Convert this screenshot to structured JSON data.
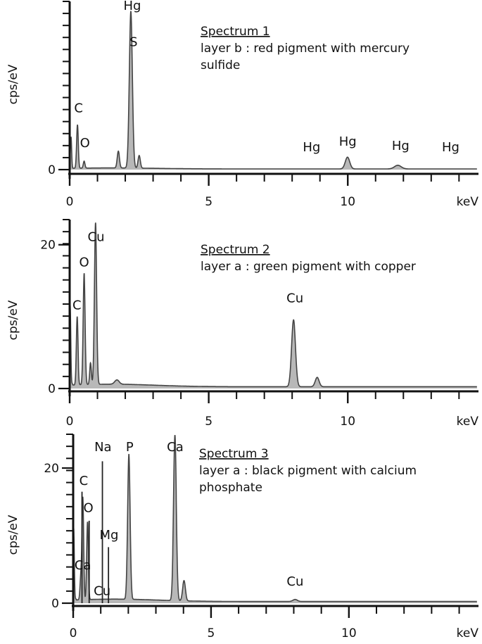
{
  "chart_data": [
    {
      "type": "line",
      "title": "Spectrum 1",
      "subtitle": "layer b : red pigment with mercury sulfide",
      "subtitle_lines": [
        "layer b : red pigment with mercury",
        "sulfide"
      ],
      "xlabel": "keV",
      "ylabel": "cps/eV",
      "xlim": [
        0,
        14.7
      ],
      "ylim": [
        0,
        60
      ],
      "x_ticks": [
        0,
        5,
        10
      ],
      "y_ticks": [
        0
      ],
      "fill_color": "#b8b8b8",
      "line_color": "#444444",
      "peaks": [
        {
          "x": 0.05,
          "height": 10.5,
          "width": 0.02
        },
        {
          "x": 0.28,
          "height": 15.5,
          "width": 0.03
        },
        {
          "x": 0.52,
          "height": 2.5,
          "width": 0.03
        },
        {
          "x": 1.75,
          "height": 6.0,
          "width": 0.04
        },
        {
          "x": 2.2,
          "height": 56.0,
          "width": 0.055
        },
        {
          "x": 2.5,
          "height": 4.5,
          "width": 0.04
        },
        {
          "x": 9.99,
          "height": 4.2,
          "width": 0.08
        },
        {
          "x": 11.8,
          "height": 1.3,
          "width": 0.12
        }
      ],
      "labels": [
        {
          "text": "Hg",
          "x": 2.25,
          "y": 57
        },
        {
          "text": "S",
          "x": 2.3,
          "y": 44
        },
        {
          "text": "C",
          "x": 0.32,
          "y": 20.5
        },
        {
          "text": "O",
          "x": 0.55,
          "y": 8
        },
        {
          "text": "Hg",
          "x": 8.7,
          "y": 6.5
        },
        {
          "text": "Hg",
          "x": 10.0,
          "y": 8.5
        },
        {
          "text": "Hg",
          "x": 11.9,
          "y": 7.0
        },
        {
          "text": "Hg",
          "x": 13.7,
          "y": 6.5
        }
      ]
    },
    {
      "type": "line",
      "title": "Spectrum 2",
      "subtitle": "layer a : green pigment with copper",
      "subtitle_lines": [
        "layer a : green pigment with copper"
      ],
      "xlabel": "keV",
      "ylabel": "cps/eV",
      "xlim": [
        0,
        14.7
      ],
      "ylim": [
        0,
        23.5
      ],
      "x_ticks": [
        0,
        5,
        10
      ],
      "y_ticks": [
        0,
        20
      ],
      "fill_color": "#b8b8b8",
      "line_color": "#444444",
      "peaks": [
        {
          "x": 0.02,
          "height": 9.0,
          "width": 0.02
        },
        {
          "x": 0.27,
          "height": 9.5,
          "width": 0.03
        },
        {
          "x": 0.52,
          "height": 15.5,
          "width": 0.035
        },
        {
          "x": 0.75,
          "height": 3.0,
          "width": 0.03
        },
        {
          "x": 0.93,
          "height": 22.5,
          "width": 0.04
        },
        {
          "x": 1.7,
          "height": 0.6,
          "width": 0.08
        },
        {
          "x": 8.05,
          "height": 9.3,
          "width": 0.07
        },
        {
          "x": 8.9,
          "height": 1.3,
          "width": 0.07
        }
      ],
      "labels": [
        {
          "text": "Cu",
          "x": 0.95,
          "y": 20.5
        },
        {
          "text": "O",
          "x": 0.52,
          "y": 17.0
        },
        {
          "text": "C",
          "x": 0.26,
          "y": 11.0
        },
        {
          "text": "Cu",
          "x": 8.1,
          "y": 12.0
        }
      ]
    },
    {
      "type": "line",
      "title": "Spectrum 3",
      "subtitle": "layer a : black pigment with calcium phosphate",
      "subtitle_lines": [
        "layer a : black pigment with calcium",
        "phosphate"
      ],
      "xlabel": "keV",
      "ylabel": "cps/eV",
      "xlim": [
        0,
        14.7
      ],
      "ylim": [
        0,
        25
      ],
      "x_ticks": [
        0,
        5,
        10
      ],
      "y_ticks": [
        0,
        20
      ],
      "fill_color": "#b8b8b8",
      "line_color": "#444444",
      "peaks": [
        {
          "x": 0.02,
          "height": 8.5,
          "width": 0.02
        },
        {
          "x": 0.28,
          "height": 3.5,
          "width": 0.03
        },
        {
          "x": 0.35,
          "height": 15.0,
          "width": 0.03
        },
        {
          "x": 0.52,
          "height": 11.5,
          "width": 0.03
        },
        {
          "x": 2.02,
          "height": 21.5,
          "width": 0.045
        },
        {
          "x": 3.69,
          "height": 24.5,
          "width": 0.05
        },
        {
          "x": 4.02,
          "height": 3.0,
          "width": 0.05
        },
        {
          "x": 8.05,
          "height": 0.3,
          "width": 0.08
        }
      ],
      "marker_lines": [
        {
          "x": 0.32,
          "y_top": 16.5
        },
        {
          "x": 0.58,
          "y_top": 12.2
        },
        {
          "x": 1.06,
          "y_top": 21.0
        },
        {
          "x": 1.28,
          "y_top": 8.3
        }
      ],
      "labels": [
        {
          "text": "Na",
          "x": 1.08,
          "y": 22.5
        },
        {
          "text": "P",
          "x": 2.05,
          "y": 22.5
        },
        {
          "text": "Ca",
          "x": 3.7,
          "y": 22.5
        },
        {
          "text": "C",
          "x": 0.38,
          "y": 17.5
        },
        {
          "text": "O",
          "x": 0.55,
          "y": 13.5
        },
        {
          "text": "Mg",
          "x": 1.3,
          "y": 9.5
        },
        {
          "text": "Ca",
          "x": 0.35,
          "y": 5.0
        },
        {
          "text": "Cu",
          "x": 1.05,
          "y": 1.2
        },
        {
          "text": "Cu",
          "x": 8.05,
          "y": 2.6
        }
      ]
    }
  ]
}
